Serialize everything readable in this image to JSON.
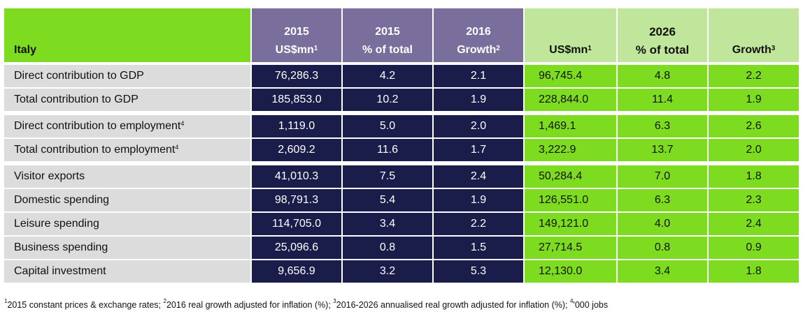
{
  "header": {
    "country": "Italy",
    "c1_line1": "2015",
    "c1_line2": "US$mn",
    "c1_sup": "1",
    "c2_line1": "2015",
    "c2_line2": "% of total",
    "c3_line1": "2016",
    "c3_line2": "Growth",
    "c3_sup": "2",
    "c4_line2": "US$mn",
    "c4_sup": "1",
    "c5_line1": "2026",
    "c5_line2": "% of total",
    "c6_line2": "Growth",
    "c6_sup": "3"
  },
  "rows": [
    {
      "label": "Direct contribution to GDP",
      "sup": "",
      "v2015": "76,286.3",
      "pct2015": "4.2",
      "g2016": "2.1",
      "v2026": "96,745.4",
      "pct2026": "4.8",
      "g2026": "2.2"
    },
    {
      "label": "Total contribution to GDP",
      "sup": "",
      "v2015": "185,853.0",
      "pct2015": "10.2",
      "g2016": "1.9",
      "v2026": "228,844.0",
      "pct2026": "11.4",
      "g2026": "1.9"
    },
    {
      "label": "Direct contribution to employment",
      "sup": "4",
      "v2015": "1,119.0",
      "pct2015": "5.0",
      "g2016": "2.0",
      "v2026": "1,469.1",
      "pct2026": "6.3",
      "g2026": "2.6"
    },
    {
      "label": "Total contribution to employment",
      "sup": "4",
      "v2015": "2,609.2",
      "pct2015": "11.6",
      "g2016": "1.7",
      "v2026": "3,222.9",
      "pct2026": "13.7",
      "g2026": "2.0"
    },
    {
      "label": "Visitor exports",
      "sup": "",
      "v2015": "41,010.3",
      "pct2015": "7.5",
      "g2016": "2.4",
      "v2026": "50,284.4",
      "pct2026": "7.0",
      "g2026": "1.8"
    },
    {
      "label": "Domestic spending",
      "sup": "",
      "v2015": "98,791.3",
      "pct2015": "5.4",
      "g2016": "1.9",
      "v2026": "126,551.0",
      "pct2026": "6.3",
      "g2026": "2.3"
    },
    {
      "label": "Leisure spending",
      "sup": "",
      "v2015": "114,705.0",
      "pct2015": "3.4",
      "g2016": "2.2",
      "v2026": "149,121.0",
      "pct2026": "4.0",
      "g2026": "2.4"
    },
    {
      "label": "Business spending",
      "sup": "",
      "v2015": "25,096.6",
      "pct2015": "0.8",
      "g2016": "1.5",
      "v2026": "27,714.5",
      "pct2026": "0.8",
      "g2026": "0.9"
    },
    {
      "label": "Capital investment",
      "sup": "",
      "v2015": "9,656.9",
      "pct2015": "3.2",
      "g2016": "5.3",
      "v2026": "12,130.0",
      "pct2026": "3.4",
      "g2026": "1.8"
    }
  ],
  "footnote": {
    "s1": "1",
    "t1": "2015 constant prices & exchange rates; ",
    "s2": "2",
    "t2": "2016 real growth adjusted for inflation (%); ",
    "s3": "3",
    "t3": "2016-2026 annualised real growth adjusted for inflation (%); ",
    "s4": "4",
    "t4": "'000 jobs"
  },
  "colors": {
    "bright_green": "#7ddc1f",
    "light_green": "#bfe69a",
    "purple": "#7a6f9c",
    "navy": "#1a1c4a",
    "label_grey": "#dcdcdc"
  }
}
